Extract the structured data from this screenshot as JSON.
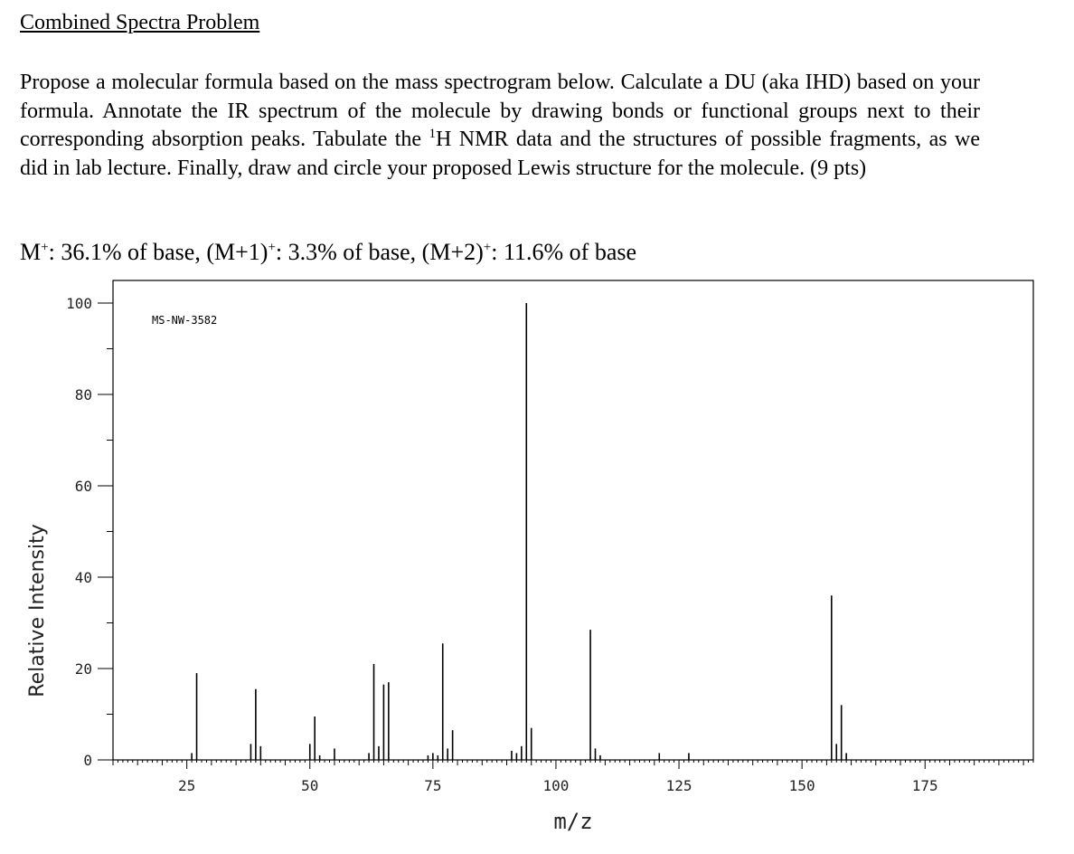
{
  "header": {
    "title": "Combined Spectra Problem",
    "instructions_part1": "Propose a molecular formula based on the mass spectrogram below. Calculate a DU (aka IHD) based on your formula. Annotate the IR spectrum of the molecule by drawing bonds or functional groups next to their corresponding absorption peaks. Tabulate the ",
    "instructions_sup": "1",
    "instructions_part2": "H NMR data and the structures of possible fragments, as we did in lab lecture. Finally, draw and circle your proposed Lewis structure for the molecule. (9 pts)"
  },
  "mass_info": {
    "m_label": "M",
    "m_charge": "+",
    "m_value": ": 36.1% of base, ",
    "m1_label": "(M+1)",
    "m1_charge": "+",
    "m1_value": ": 3.3% of base, ",
    "m2_label": "(M+2)",
    "m2_charge": "+",
    "m2_value": ": 11.6% of base"
  },
  "chart_data": {
    "type": "bar",
    "title": "MS-NW-3582",
    "xlabel": "m/z",
    "ylabel": "Relative Intensity",
    "xlim": [
      10,
      197
    ],
    "ylim": [
      0,
      100
    ],
    "x_ticks": [
      25,
      50,
      75,
      100,
      125,
      150,
      175
    ],
    "y_ticks": [
      0,
      20,
      40,
      60,
      80,
      100
    ],
    "grid": false,
    "peaks": [
      {
        "mz": 26,
        "intensity": 1.5
      },
      {
        "mz": 27,
        "intensity": 19
      },
      {
        "mz": 38,
        "intensity": 3.5
      },
      {
        "mz": 39,
        "intensity": 15.5
      },
      {
        "mz": 40,
        "intensity": 3
      },
      {
        "mz": 50,
        "intensity": 3.5
      },
      {
        "mz": 51,
        "intensity": 9.5
      },
      {
        "mz": 52,
        "intensity": 1
      },
      {
        "mz": 55,
        "intensity": 2.5
      },
      {
        "mz": 62,
        "intensity": 1.5
      },
      {
        "mz": 63,
        "intensity": 21
      },
      {
        "mz": 64,
        "intensity": 3
      },
      {
        "mz": 65,
        "intensity": 16.5
      },
      {
        "mz": 66,
        "intensity": 17
      },
      {
        "mz": 74,
        "intensity": 1
      },
      {
        "mz": 75,
        "intensity": 1.5
      },
      {
        "mz": 76,
        "intensity": 1
      },
      {
        "mz": 77,
        "intensity": 25.5
      },
      {
        "mz": 78,
        "intensity": 2.5
      },
      {
        "mz": 79,
        "intensity": 6.5
      },
      {
        "mz": 91,
        "intensity": 2
      },
      {
        "mz": 92,
        "intensity": 1.5
      },
      {
        "mz": 93,
        "intensity": 3
      },
      {
        "mz": 94,
        "intensity": 100
      },
      {
        "mz": 95,
        "intensity": 7
      },
      {
        "mz": 107,
        "intensity": 28.5
      },
      {
        "mz": 108,
        "intensity": 2.5
      },
      {
        "mz": 109,
        "intensity": 1
      },
      {
        "mz": 121,
        "intensity": 1.5
      },
      {
        "mz": 127,
        "intensity": 1.5
      },
      {
        "mz": 156,
        "intensity": 36
      },
      {
        "mz": 157,
        "intensity": 3.5
      },
      {
        "mz": 158,
        "intensity": 12
      },
      {
        "mz": 159,
        "intensity": 1.5
      }
    ]
  }
}
